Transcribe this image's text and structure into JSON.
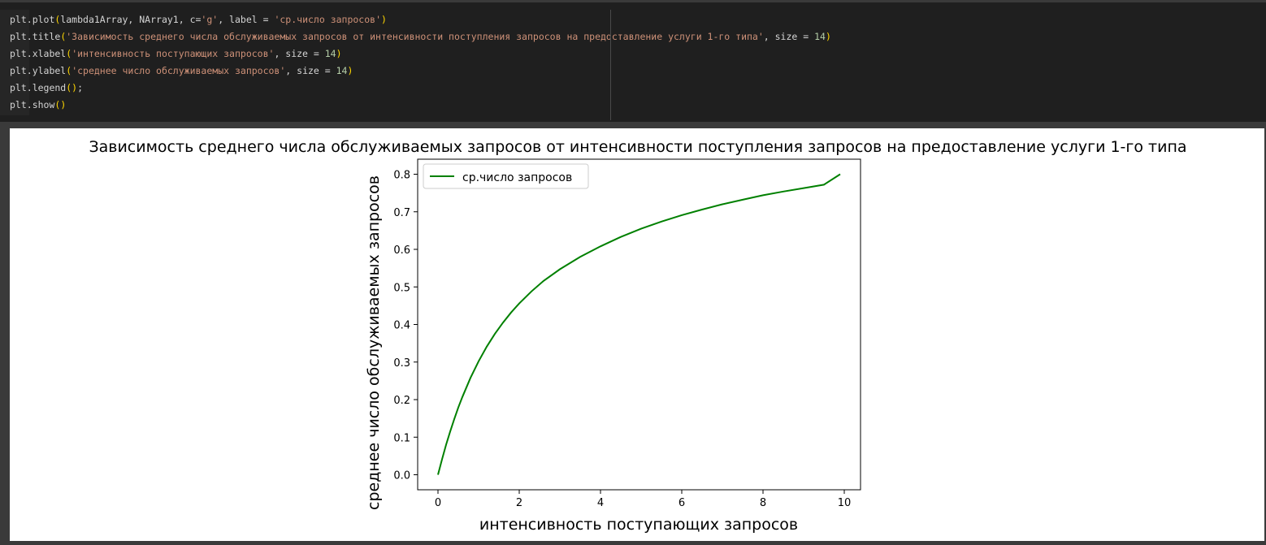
{
  "code": {
    "lines": [
      [
        {
          "t": "plt.plot",
          "c": "fn"
        },
        {
          "t": "(",
          "c": "paren"
        },
        {
          "t": "lambda1Array, NArray1, c=",
          "c": "kw"
        },
        {
          "t": "'g'",
          "c": "str"
        },
        {
          "t": ", label = ",
          "c": "kw"
        },
        {
          "t": "'ср.число запросов'",
          "c": "str"
        },
        {
          "t": ")",
          "c": "paren"
        }
      ],
      [
        {
          "t": "plt.title",
          "c": "fn"
        },
        {
          "t": "(",
          "c": "paren"
        },
        {
          "t": "'Зависимость среднего числа обслуживаемых запросов от интенсивности поступления запросов на предоставление услуги 1-го типа'",
          "c": "str"
        },
        {
          "t": ", size = ",
          "c": "kw"
        },
        {
          "t": "14",
          "c": "num"
        },
        {
          "t": ")",
          "c": "paren"
        }
      ],
      [
        {
          "t": "plt.xlabel",
          "c": "fn"
        },
        {
          "t": "(",
          "c": "paren"
        },
        {
          "t": "'интенсивность поступающих запросов'",
          "c": "str"
        },
        {
          "t": ", size = ",
          "c": "kw"
        },
        {
          "t": "14",
          "c": "num"
        },
        {
          "t": ")",
          "c": "paren"
        }
      ],
      [
        {
          "t": "plt.ylabel",
          "c": "fn"
        },
        {
          "t": "(",
          "c": "paren"
        },
        {
          "t": "'среднее число обслуживаемых запросов'",
          "c": "str"
        },
        {
          "t": ", size = ",
          "c": "kw"
        },
        {
          "t": "14",
          "c": "num"
        },
        {
          "t": ")",
          "c": "paren"
        }
      ],
      [
        {
          "t": "plt.legend",
          "c": "fn"
        },
        {
          "t": "()",
          "c": "paren"
        },
        {
          "t": ";",
          "c": "kw"
        }
      ],
      [
        {
          "t": "plt.show",
          "c": "fn"
        },
        {
          "t": "()",
          "c": "paren"
        }
      ]
    ]
  },
  "chart_data": {
    "type": "line",
    "title": "Зависимость среднего числа обслуживаемых запросов от интенсивности поступления запросов на предоставление услуги 1-го типа",
    "xlabel": "интенсивность поступающих запросов",
    "ylabel": "среднее число обслуживаемых запросов",
    "xlim": [
      -0.5,
      10.4
    ],
    "ylim": [
      -0.04,
      0.84
    ],
    "xticks": [
      0,
      2,
      4,
      6,
      8,
      10
    ],
    "yticks": [
      0.0,
      0.1,
      0.2,
      0.3,
      0.4,
      0.5,
      0.6,
      0.7,
      0.8
    ],
    "grid": false,
    "legend_position": "upper left",
    "series": [
      {
        "name": "ср.число запросов",
        "color": "#008000",
        "x": [
          0,
          0.1,
          0.2,
          0.3,
          0.4,
          0.5,
          0.6,
          0.8,
          1.0,
          1.2,
          1.4,
          1.6,
          1.8,
          2.0,
          2.3,
          2.6,
          3.0,
          3.5,
          4.0,
          4.5,
          5.0,
          5.5,
          6.0,
          6.5,
          7.0,
          7.5,
          8.0,
          8.5,
          9.0,
          9.5,
          9.9
        ],
        "y": [
          0.0,
          0.041,
          0.08,
          0.115,
          0.148,
          0.179,
          0.207,
          0.258,
          0.302,
          0.341,
          0.375,
          0.405,
          0.432,
          0.456,
          0.488,
          0.516,
          0.547,
          0.58,
          0.608,
          0.633,
          0.655,
          0.674,
          0.691,
          0.706,
          0.72,
          0.732,
          0.744,
          0.754,
          0.763,
          0.772,
          0.8
        ]
      }
    ]
  }
}
